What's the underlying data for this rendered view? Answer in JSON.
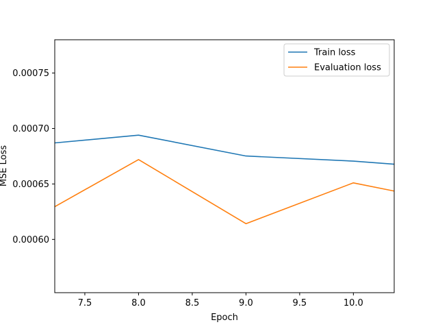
{
  "chart_data": {
    "type": "line",
    "title": "",
    "xlabel": "Epoch",
    "ylabel": "MSE Loss",
    "xlim": [
      7.22,
      10.38
    ],
    "ylim": [
      0.000552,
      0.00078
    ],
    "x_ticks": [
      7.5,
      8.0,
      8.5,
      9.0,
      9.5,
      10.0
    ],
    "x_tick_labels": [
      "7.5",
      "8.0",
      "8.5",
      "9.0",
      "9.5",
      "10.0"
    ],
    "y_ticks": [
      0.0006,
      0.00065,
      0.0007,
      0.00075
    ],
    "y_tick_labels": [
      "0.00060",
      "0.00065",
      "0.00070",
      "0.00075"
    ],
    "grid": false,
    "legend_position": "top-right",
    "series": [
      {
        "name": "Train loss",
        "color": "#1f77b4",
        "x": [
          7.22,
          8.0,
          9.0,
          10.0,
          10.38
        ],
        "values": [
          0.000687,
          0.000694,
          0.0006752,
          0.0006706,
          0.0006678
        ]
      },
      {
        "name": "Evaluation loss",
        "color": "#ff7f0e",
        "x": [
          7.22,
          8.0,
          9.0,
          10.0,
          10.38
        ],
        "values": [
          0.0006295,
          0.000672,
          0.0006142,
          0.000651,
          0.0006436
        ]
      }
    ]
  }
}
